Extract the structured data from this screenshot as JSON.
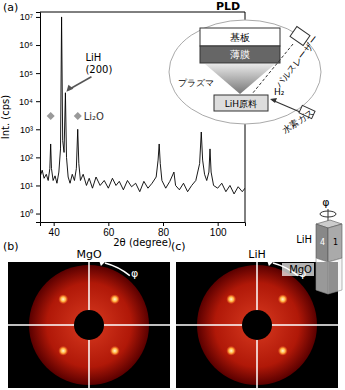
{
  "chart_data": {
    "type": "line",
    "title": "PLD",
    "x_label": "2θ (degree)",
    "y_label": "Int. (cps)",
    "log": "y",
    "color": "#000000",
    "x": [
      35,
      35.8,
      36.5,
      37.3,
      38,
      38.6,
      38.9,
      39.2,
      39.8,
      40.5,
      41.2,
      41.9,
      42.5,
      42.9,
      43.3,
      43.8,
      44.3,
      44.7,
      45.3,
      46,
      46.8,
      47.6,
      48.3,
      48.8,
      49.2,
      49.8,
      50.8,
      52,
      53,
      54.2,
      55.5,
      57,
      58.5,
      60,
      61.5,
      62.8,
      64,
      65.5,
      67,
      68.5,
      70,
      71.5,
      73,
      74.5,
      76,
      77.5,
      78.2,
      78.6,
      79,
      79.6,
      81,
      82.5,
      84,
      84.6,
      86,
      87.5,
      89,
      90.5,
      92,
      93.4,
      94,
      94.5,
      95.2,
      96,
      96.8,
      97.2,
      97.6,
      98.5,
      100,
      101.5,
      103,
      104.5,
      106,
      107.5,
      109,
      110
    ],
    "values": [
      20,
      35,
      18,
      25,
      15,
      40,
      300,
      40,
      15,
      22,
      12,
      30,
      200,
      10000000,
      400,
      150,
      20000,
      100,
      20,
      12,
      25,
      15,
      40,
      1000,
      60,
      15,
      25,
      10,
      18,
      8,
      20,
      10,
      15,
      8,
      18,
      10,
      14,
      7,
      15,
      9,
      12,
      6,
      14,
      8,
      12,
      20,
      80,
      300,
      60,
      15,
      8,
      14,
      30,
      10,
      7,
      12,
      6,
      10,
      15,
      60,
      800,
      80,
      25,
      15,
      30,
      200,
      30,
      10,
      8,
      12,
      6,
      10,
      5,
      9,
      6,
      8
    ],
    "xlim": [
      35,
      110
    ],
    "xticks": [
      40,
      60,
      80,
      100
    ],
    "ylim": [
      0.5,
      15000000
    ],
    "yticks": [
      {
        "value": 1,
        "label": "10⁰"
      },
      {
        "value": 10,
        "label": "10¹"
      },
      {
        "value": 100,
        "label": "10²"
      },
      {
        "value": 1000,
        "label": "10³"
      },
      {
        "value": 10000,
        "label": "10⁴"
      },
      {
        "value": 100000,
        "label": "10⁵"
      },
      {
        "value": 1000000,
        "label": "10⁶"
      },
      {
        "value": 10000000,
        "label": "10⁷"
      }
    ],
    "annotations": [
      {
        "lines": [
          "LiH",
          "(200)"
        ],
        "x": 44.3,
        "y": 20000,
        "marker": "arrow"
      },
      {
        "lines": [
          "Li₂O"
        ],
        "x": [
          38.9,
          48.8
        ],
        "y": 3000,
        "marker": "diamond"
      }
    ]
  },
  "panel_labels": [
    "(a)",
    "(b)",
    "(c)"
  ],
  "inset": {
    "substrate": "基板",
    "film": "薄膜",
    "plasma": "プラズマ",
    "target": "LiH原料",
    "gas_formula": "H₂",
    "gas": "水素ガス",
    "laser": "パルスレーザー"
  },
  "pole_figures": [
    {
      "title": "MgO",
      "axis_label": "φ",
      "chi_lim": [
        0,
        90
      ],
      "spots": [
        {
          "phi": 45,
          "chi": 54.7
        },
        {
          "phi": 135,
          "chi": 54.7
        },
        {
          "phi": 225,
          "chi": 54.7
        },
        {
          "phi": 315,
          "chi": 54.7
        }
      ]
    },
    {
      "title": "LiH",
      "axis_label": "φ",
      "chi_lim": [
        0,
        90
      ],
      "spots": [
        {
          "phi": 45,
          "chi": 54.7
        },
        {
          "phi": 135,
          "chi": 54.7
        },
        {
          "phi": 225,
          "chi": 54.7
        },
        {
          "phi": 315,
          "chi": 54.7
        }
      ]
    }
  ],
  "crystal_model": {
    "rotation_label": "φ",
    "top": "LiH",
    "bottom": "MgO",
    "faces": [
      "4",
      "1"
    ]
  }
}
